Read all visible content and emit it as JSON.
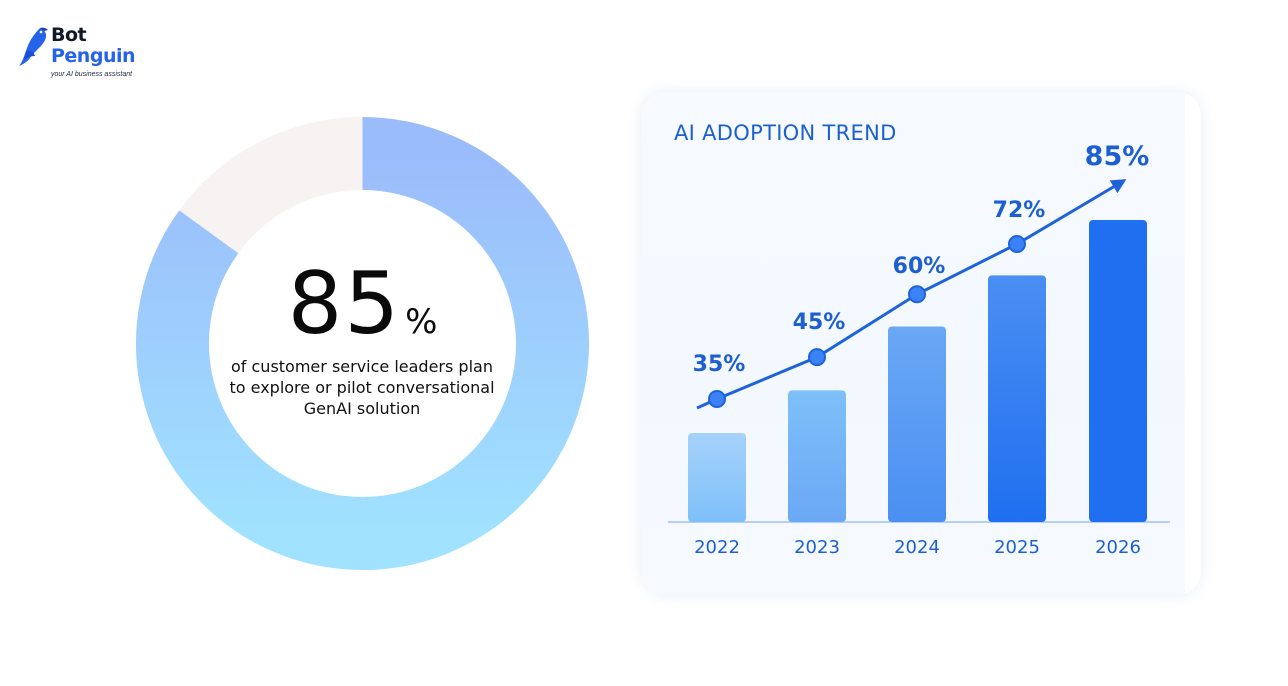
{
  "brand": {
    "name_line1": "Bot",
    "name_line2": "Penguin",
    "tagline": "your AI business assistant",
    "icon": "penguin-bird-icon",
    "color": "#2563eb"
  },
  "donut": {
    "value": "85",
    "unit": "%",
    "caption": "of customer service leaders plan to explore or pilot conversational GenAI solution",
    "fraction": 0.85,
    "colors": {
      "filled_start": "#9bbcfb",
      "filled_end": "#9fe0ff",
      "remainder": "#f7f3f3"
    }
  },
  "chart_data": {
    "type": "bar",
    "title": "AI ADOPTION TREND",
    "categories": [
      "2022",
      "2023",
      "2024",
      "2025",
      "2026"
    ],
    "values": [
      35,
      45,
      60,
      72,
      85
    ],
    "labels": [
      "35%",
      "45%",
      "60%",
      "72%",
      "85%"
    ],
    "xlabel": "",
    "ylabel": "",
    "ylim": [
      0,
      100
    ],
    "trend_line": true,
    "grid": false,
    "colors": {
      "title": "#1d5fd0",
      "labels": "#1d5fd0",
      "line": "#1f63d8",
      "bars": [
        "#a6d2fb",
        "#7ec0f9",
        "#6aa8f5",
        "#4a8ff2",
        "#1f6ff0"
      ]
    }
  }
}
